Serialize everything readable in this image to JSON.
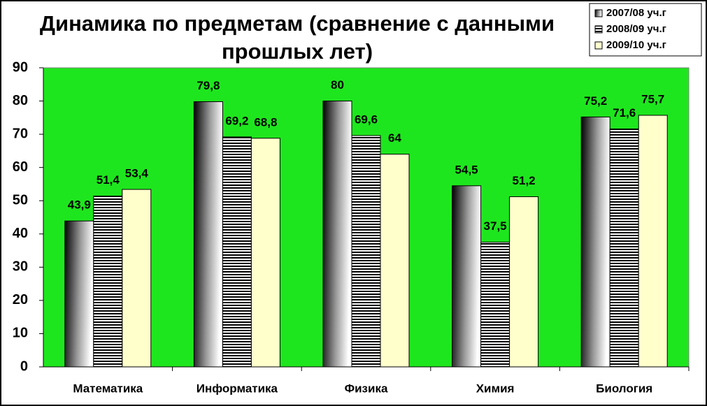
{
  "chart_data": {
    "type": "bar",
    "title": "Динамика по предметам (сравнение с данными прошлых лет)",
    "categories": [
      "Математика",
      "Информатика",
      "Физика",
      "Химия",
      "Биология"
    ],
    "series": [
      {
        "name": "2007/08 уч.г",
        "color": "#000000",
        "pattern": "gradient",
        "values": [
          43.9,
          79.8,
          80,
          54.5,
          75.2
        ],
        "value_labels": [
          "43,9",
          "79,8",
          "80",
          "54,5",
          "75,2"
        ]
      },
      {
        "name": "2008/09 уч.г",
        "color": "#000000",
        "pattern": "stripes",
        "values": [
          51.4,
          69.2,
          69.6,
          37.5,
          71.6
        ],
        "value_labels": [
          "51,4",
          "69,2",
          "69,6",
          "37,5",
          "71,6"
        ]
      },
      {
        "name": "2009/10 уч.г",
        "color": "#ffffcc",
        "pattern": "solid",
        "values": [
          53.4,
          68.8,
          64,
          51.2,
          75.7
        ],
        "value_labels": [
          "53,4",
          "68,8",
          "64",
          "51,2",
          "75,7"
        ]
      }
    ],
    "ylim": [
      0,
      90
    ],
    "yticks": [
      0,
      10,
      20,
      30,
      40,
      50,
      60,
      70,
      80,
      90
    ],
    "grid": false,
    "plot_background": "#1ee61e",
    "legend": "top-right"
  }
}
